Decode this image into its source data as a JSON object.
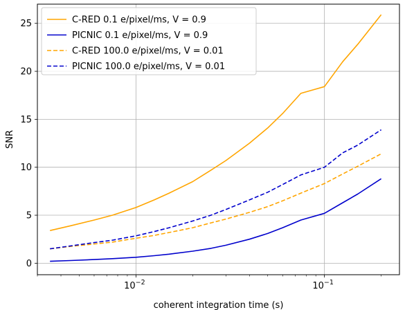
{
  "chart_data": {
    "type": "line",
    "title": "",
    "xlabel": "coherent integration time (s)",
    "ylabel": "SNR",
    "xscale": "log",
    "xlim": [
      0.003,
      0.25
    ],
    "ylim": [
      -1.2,
      27
    ],
    "grid": true,
    "legend_position": "upper-left",
    "x_major_ticks": [
      {
        "value": 0.01,
        "base": "10",
        "exp": "−2"
      },
      {
        "value": 0.1,
        "base": "10",
        "exp": "−1"
      }
    ],
    "y_ticks": [
      0,
      5,
      10,
      15,
      20,
      25
    ],
    "y_tick_labels": [
      "0",
      "5",
      "10",
      "15",
      "20",
      "25"
    ],
    "x": [
      0.0035,
      0.0045,
      0.006,
      0.0075,
      0.01,
      0.0125,
      0.015,
      0.02,
      0.025,
      0.03,
      0.04,
      0.05,
      0.06,
      0.075,
      0.1,
      0.125,
      0.15,
      0.2
    ],
    "series": [
      {
        "name": "C-RED 0.1 e/pixel/ms, V = 0.9",
        "color": "#ffa500",
        "dash": "solid",
        "values": [
          3.4,
          3.9,
          4.5,
          5.0,
          5.8,
          6.6,
          7.3,
          8.5,
          9.7,
          10.7,
          12.5,
          14.1,
          15.6,
          17.7,
          18.4,
          21.0,
          22.8,
          25.9
        ]
      },
      {
        "name": "PICNIC 0.1 e/pixel/ms, V = 0.9",
        "color": "#0000cc",
        "dash": "solid",
        "values": [
          0.2,
          0.28,
          0.38,
          0.47,
          0.62,
          0.78,
          0.94,
          1.25,
          1.55,
          1.87,
          2.5,
          3.1,
          3.7,
          4.5,
          5.2,
          6.3,
          7.2,
          8.8
        ]
      },
      {
        "name": "C-RED 100.0 e/pixel/ms, V = 0.01",
        "color": "#ffa500",
        "dash": "dashed",
        "values": [
          1.5,
          1.75,
          2.0,
          2.2,
          2.6,
          2.9,
          3.2,
          3.7,
          4.2,
          4.6,
          5.3,
          5.9,
          6.5,
          7.3,
          8.3,
          9.3,
          10.1,
          11.4
        ]
      },
      {
        "name": "PICNIC 100.0 e/pixel/ms, V = 0.01",
        "color": "#0000cc",
        "dash": "dashed",
        "values": [
          1.5,
          1.8,
          2.15,
          2.4,
          2.85,
          3.3,
          3.7,
          4.4,
          5.0,
          5.6,
          6.6,
          7.4,
          8.2,
          9.2,
          10.0,
          11.5,
          12.3,
          13.9
        ]
      }
    ]
  }
}
